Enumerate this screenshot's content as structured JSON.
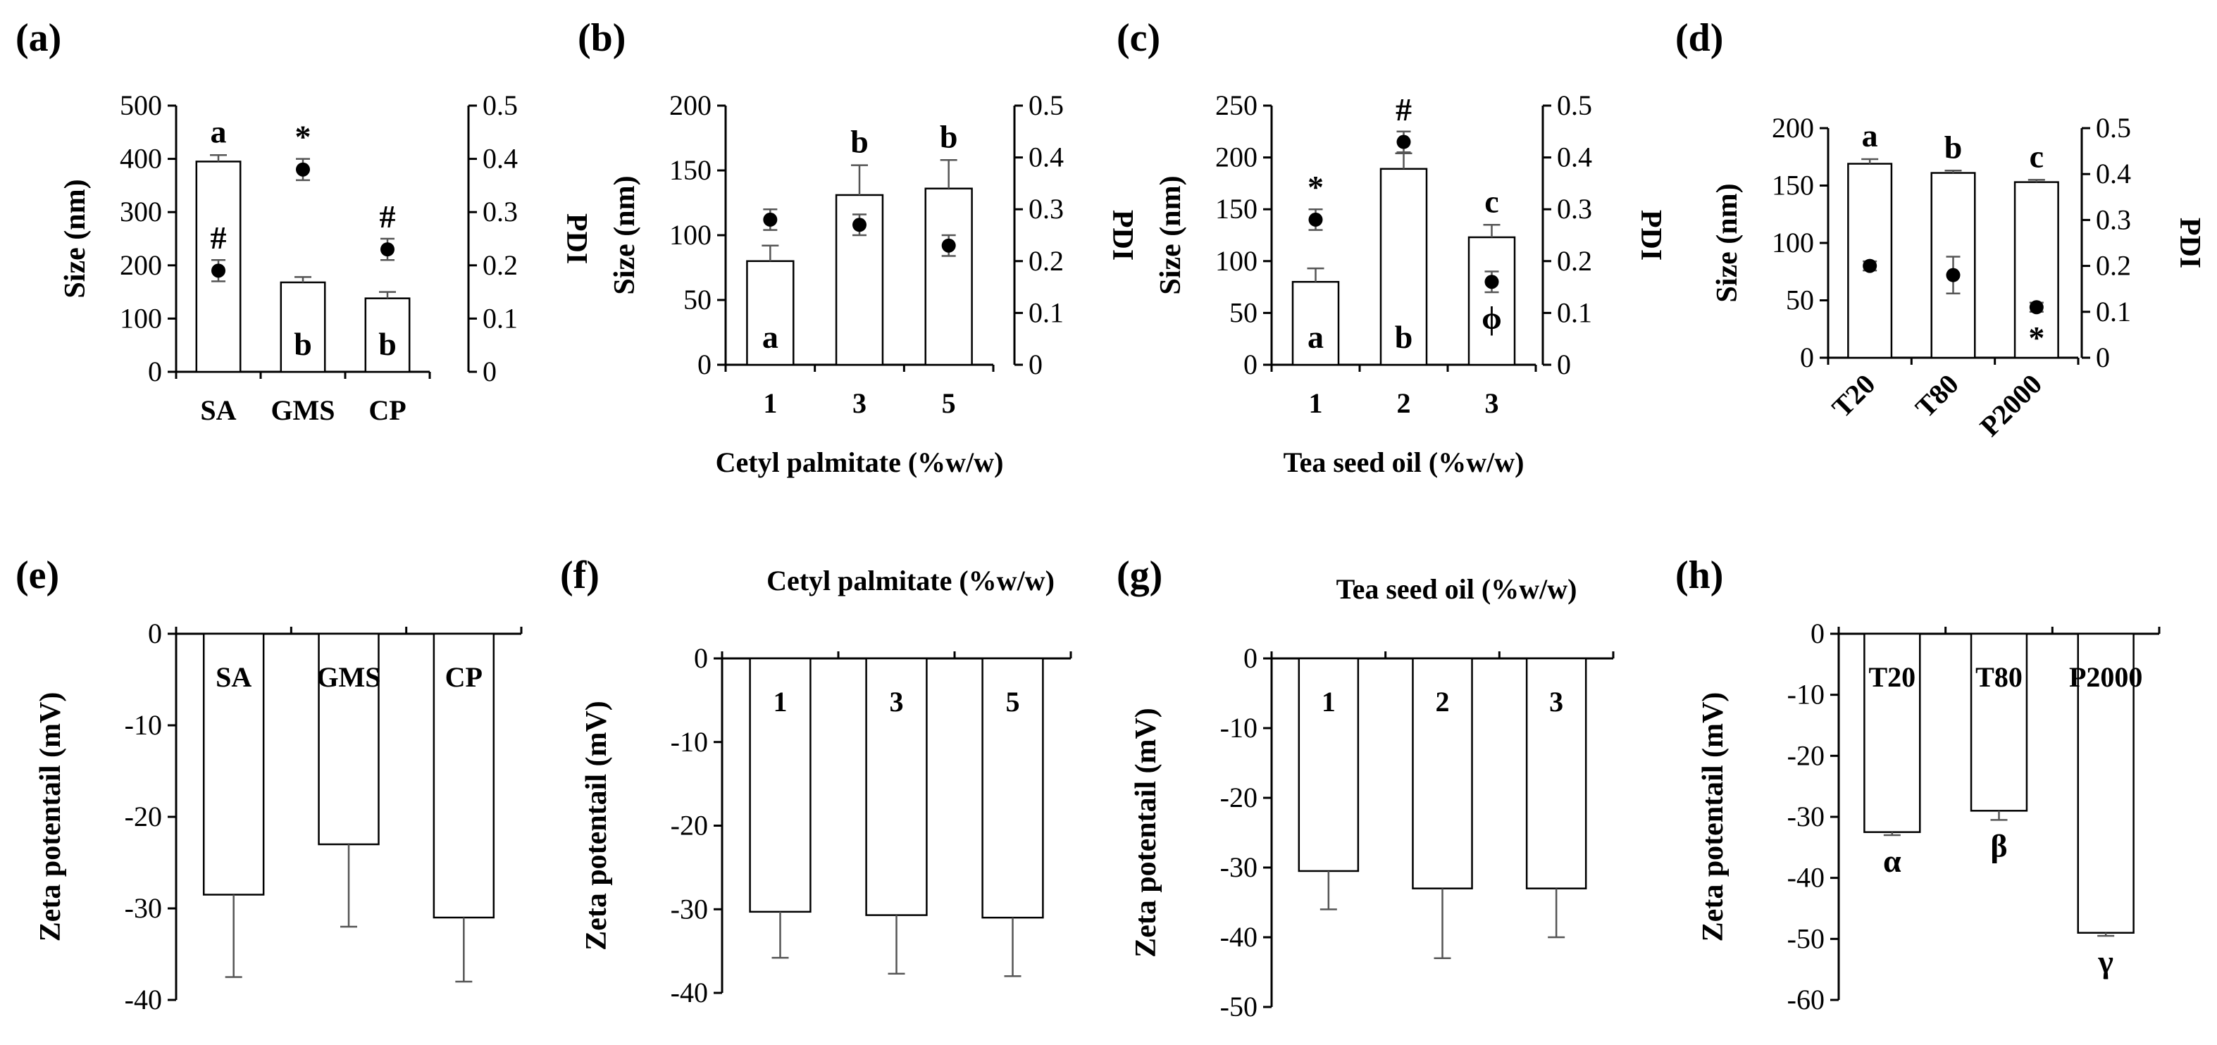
{
  "chart_data": [
    {
      "id": "a",
      "type": "bar",
      "panel_label": "(a)",
      "categories": [
        "SA",
        "GMS",
        "CP"
      ],
      "series": [
        {
          "name": "Size (nm)",
          "axis": "left",
          "values": [
            395,
            168,
            138
          ],
          "errors": [
            12,
            10,
            12
          ]
        },
        {
          "name": "PDI",
          "axis": "right",
          "values": [
            0.19,
            0.38,
            0.23
          ],
          "errors": [
            0.02,
            0.02,
            0.02
          ]
        }
      ],
      "ylabel": "Size (nm)",
      "ylim": [
        0,
        500
      ],
      "yticks": [
        0,
        100,
        200,
        300,
        400,
        500
      ],
      "y2label": "PDI",
      "y2lim": [
        0,
        0.5
      ],
      "y2ticks": [
        "0",
        "0.1",
        "0.2",
        "0.3",
        "0.4",
        "0.5"
      ],
      "xlabel": "",
      "bar_labels": [
        "a",
        "b",
        "b"
      ],
      "point_labels": [
        "#",
        "*",
        "#"
      ]
    },
    {
      "id": "b",
      "type": "bar",
      "panel_label": "(b)",
      "categories": [
        "1",
        "3",
        "5"
      ],
      "series": [
        {
          "name": "Size (nm)",
          "axis": "left",
          "values": [
            80,
            131,
            136
          ],
          "errors": [
            12,
            23,
            22
          ]
        },
        {
          "name": "PDI",
          "axis": "right",
          "values": [
            0.28,
            0.27,
            0.23
          ],
          "errors": [
            0.02,
            0.02,
            0.02
          ]
        }
      ],
      "ylabel": "Size (nm)",
      "ylim": [
        0,
        200
      ],
      "yticks": [
        0,
        50,
        100,
        150,
        200
      ],
      "y2label": "PDI",
      "y2lim": [
        0,
        0.5
      ],
      "y2ticks": [
        "0",
        "0.1",
        "0.2",
        "0.3",
        "0.4",
        "0.5"
      ],
      "xlabel": "Cetyl palmitate (%w/w)",
      "bar_labels": [
        "a",
        "b",
        "b"
      ],
      "point_labels": [
        "",
        "",
        ""
      ]
    },
    {
      "id": "c",
      "type": "bar",
      "panel_label": "(c)",
      "categories": [
        "1",
        "2",
        "3"
      ],
      "series": [
        {
          "name": "Size (nm)",
          "axis": "left",
          "values": [
            80,
            189,
            123
          ],
          "errors": [
            13,
            15,
            12
          ]
        },
        {
          "name": "PDI",
          "axis": "right",
          "values": [
            0.28,
            0.43,
            0.16
          ],
          "errors": [
            0.02,
            0.02,
            0.02
          ]
        }
      ],
      "ylabel": "Size (nm)",
      "ylim": [
        0,
        250
      ],
      "yticks": [
        0,
        50,
        100,
        150,
        200,
        250
      ],
      "y2label": "PDI",
      "y2lim": [
        0,
        0.5
      ],
      "y2ticks": [
        "0",
        "0.1",
        "0.2",
        "0.3",
        "0.4",
        "0.5"
      ],
      "xlabel": "Tea seed oil (%w/w)",
      "bar_labels": [
        "a",
        "b",
        "c"
      ],
      "point_labels": [
        "*",
        "#",
        "ϕ"
      ]
    },
    {
      "id": "d",
      "type": "bar",
      "panel_label": "(d)",
      "categories": [
        "T20",
        "T80",
        "P2000"
      ],
      "series": [
        {
          "name": "Size (nm)",
          "axis": "left",
          "values": [
            169,
            161,
            153
          ],
          "errors": [
            4,
            2,
            2
          ]
        },
        {
          "name": "PDI",
          "axis": "right",
          "values": [
            0.2,
            0.18,
            0.11
          ],
          "errors": [
            0.01,
            0.04,
            0.01
          ]
        }
      ],
      "ylabel": "Size (nm)",
      "ylim": [
        0,
        200
      ],
      "yticks": [
        0,
        50,
        100,
        150,
        200
      ],
      "y2label": "PDI",
      "y2lim": [
        0,
        0.5
      ],
      "y2ticks": [
        "0",
        "0.1",
        "0.2",
        "0.3",
        "0.4",
        "0.5"
      ],
      "xlabel": "",
      "bar_labels": [
        "a",
        "b",
        "c"
      ],
      "point_labels": [
        "",
        "",
        "*"
      ]
    },
    {
      "id": "e",
      "type": "bar",
      "panel_label": "(e)",
      "categories": [
        "SA",
        "GMS",
        "CP"
      ],
      "series": [
        {
          "name": "Zeta potentail (mV)",
          "values": [
            -28.5,
            -23,
            -31
          ],
          "errors": [
            9,
            9,
            7
          ]
        }
      ],
      "ylabel": "Zeta potentail (mV)",
      "ylim": [
        -40,
        0
      ],
      "yticks": [
        0,
        -10,
        -20,
        -30,
        -40
      ],
      "title": "",
      "value_labels": [
        "",
        "",
        ""
      ]
    },
    {
      "id": "f",
      "type": "bar",
      "panel_label": "(f)",
      "categories": [
        "1",
        "3",
        "5"
      ],
      "series": [
        {
          "name": "Zeta potentail (mV)",
          "values": [
            -30.3,
            -30.7,
            -31
          ],
          "errors": [
            5.5,
            7,
            7
          ]
        }
      ],
      "ylabel": "Zeta potentail (mV)",
      "ylim": [
        -40,
        0
      ],
      "yticks": [
        0,
        -10,
        -20,
        -30,
        -40
      ],
      "title": "Cetyl palmitate (%w/w)",
      "value_labels": [
        "",
        "",
        ""
      ]
    },
    {
      "id": "g",
      "type": "bar",
      "panel_label": "(g)",
      "categories": [
        "1",
        "2",
        "3"
      ],
      "series": [
        {
          "name": "Zeta potentail (mV)",
          "values": [
            -30.5,
            -33,
            -33
          ],
          "errors": [
            5.5,
            10,
            7
          ]
        }
      ],
      "ylabel": "Zeta potentail (mV)",
      "ylim": [
        -50,
        0
      ],
      "yticks": [
        0,
        -10,
        -20,
        -30,
        -40,
        -50
      ],
      "title": "Tea seed oil (%w/w)",
      "value_labels": [
        "",
        "",
        ""
      ]
    },
    {
      "id": "h",
      "type": "bar",
      "panel_label": "(h)",
      "categories": [
        "T20",
        "T80",
        "P2000"
      ],
      "series": [
        {
          "name": "Zeta potentail (mV)",
          "values": [
            -32.5,
            -29,
            -49
          ],
          "errors": [
            0.5,
            1.5,
            0.5
          ]
        }
      ],
      "ylabel": "Zeta potentail (mV)",
      "ylim": [
        -60,
        0
      ],
      "yticks": [
        0,
        -10,
        -20,
        -30,
        -40,
        -50,
        -60
      ],
      "title": "",
      "value_labels": [
        "α",
        "β",
        "γ"
      ]
    }
  ]
}
